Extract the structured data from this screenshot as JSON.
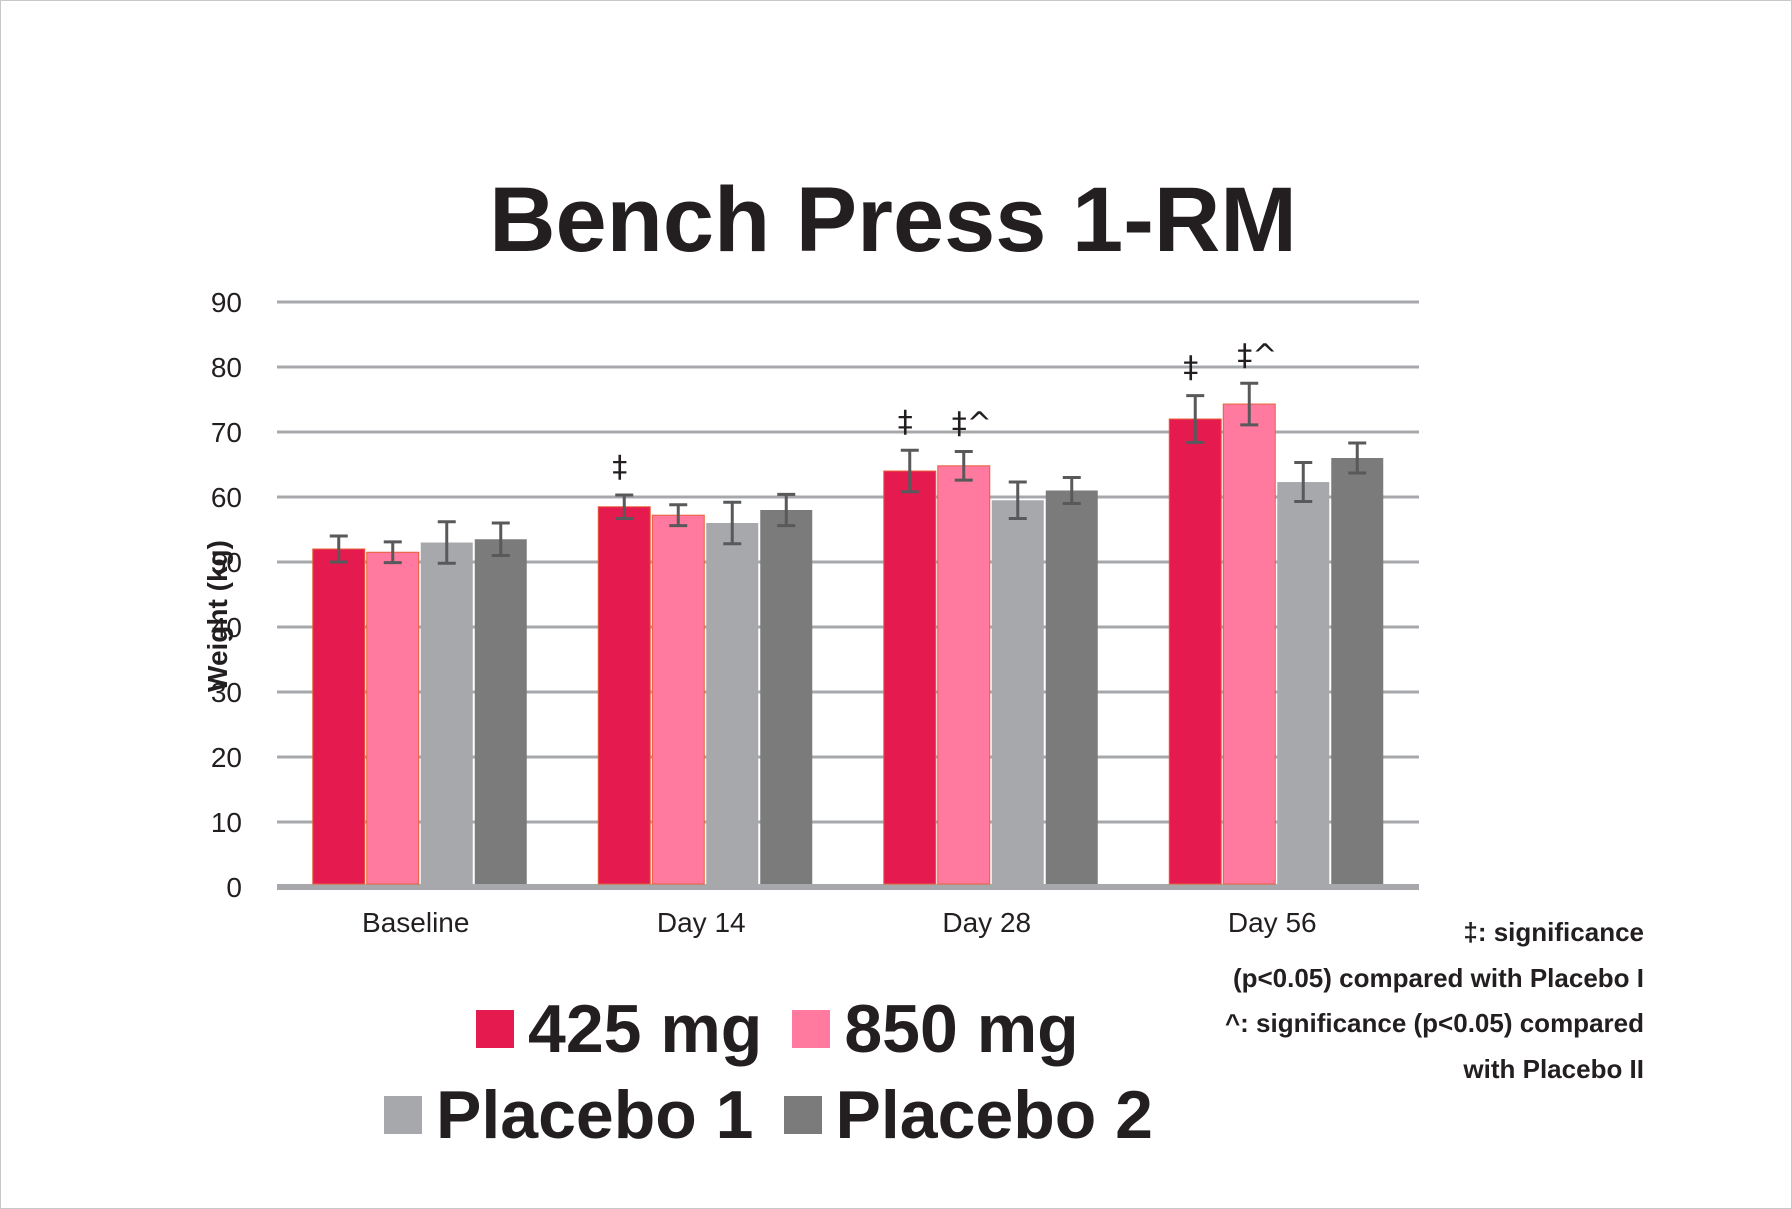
{
  "chart_data": {
    "type": "bar",
    "title": "Bench Press 1-RM",
    "xlabel": "",
    "ylabel": "Weight (kg)",
    "ylim": [
      0,
      90
    ],
    "yticks": [
      0,
      10,
      20,
      30,
      40,
      50,
      60,
      70,
      80,
      90
    ],
    "grid": true,
    "legend_position": "bottom",
    "categories": [
      "Baseline",
      "Day 14",
      "Day 28",
      "Day 56"
    ],
    "series": [
      {
        "name": "425 mg",
        "color": "#e51b50",
        "values": [
          52.0,
          58.5,
          64.0,
          72.0
        ],
        "error": [
          2.0,
          1.8,
          3.2,
          3.6
        ]
      },
      {
        "name": "850 mg",
        "color": "#ff7a9e",
        "values": [
          51.5,
          57.2,
          64.8,
          74.3
        ],
        "error": [
          1.6,
          1.6,
          2.2,
          3.2
        ]
      },
      {
        "name": "Placebo 1",
        "color": "#a7a8ac",
        "values": [
          53.0,
          56.0,
          59.5,
          62.3
        ],
        "error": [
          3.2,
          3.2,
          2.8,
          3.0
        ]
      },
      {
        "name": "Placebo 2",
        "color": "#7b7b7b",
        "values": [
          53.5,
          58.0,
          61.0,
          66.0
        ],
        "error": [
          2.5,
          2.4,
          2.0,
          2.3
        ]
      }
    ],
    "annotations": [
      {
        "category": "Day 14",
        "series": "425 mg",
        "text": "‡"
      },
      {
        "category": "Day 28",
        "series": "425 mg",
        "text": "‡"
      },
      {
        "category": "Day 28",
        "series": "850 mg",
        "text": "‡^"
      },
      {
        "category": "Day 56",
        "series": "425 mg",
        "text": "‡"
      },
      {
        "category": "Day 56",
        "series": "850 mg",
        "text": "‡^"
      }
    ],
    "footnotes": [
      "‡: significance (p<0.05) compared with Placebo I",
      "^: significance (p<0.05) compared with Placebo II"
    ]
  },
  "footnote_lines": [
    "‡: significance",
    "(p<0.05) compared with Placebo I",
    "^: significance (p<0.05) compared",
    "with Placebo II"
  ],
  "colors": {
    "grid": "#a7a8ac",
    "axis": "#a7a8ac",
    "error_bar": "#58595b",
    "text": "#231f20"
  }
}
